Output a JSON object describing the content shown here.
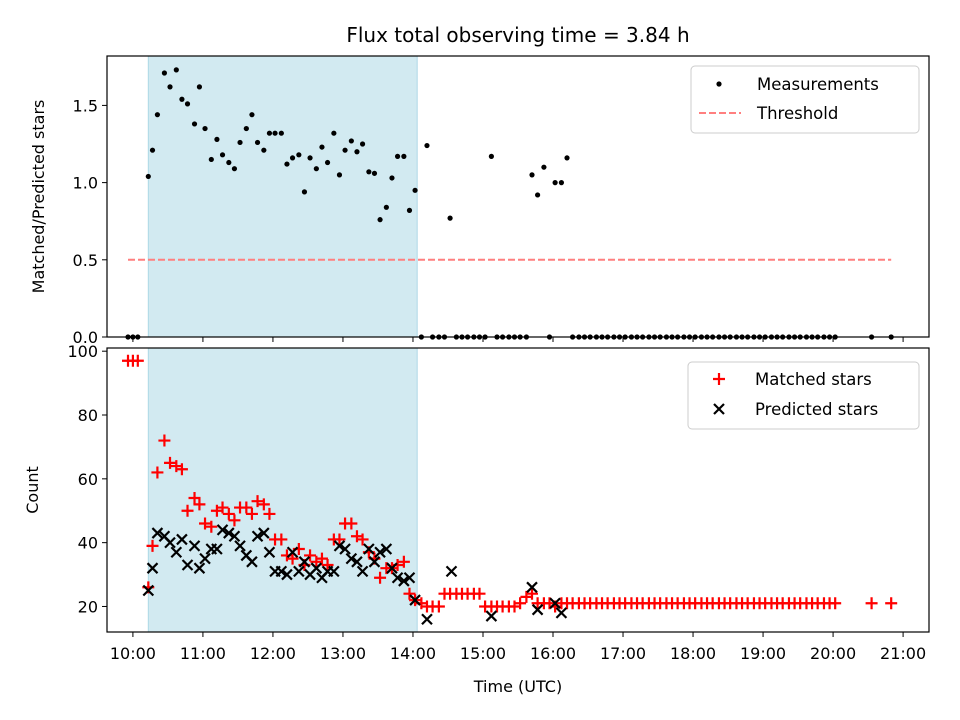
{
  "figure_title": "Flux total observing time = 3.84 h",
  "chart_data": [
    {
      "type": "scatter",
      "title": "Flux total observing time = 3.84 h",
      "xlabel": "",
      "ylabel": "Matched/Predicted stars",
      "xlim": [
        9.63,
        21.37
      ],
      "ylim": [
        0,
        1.82
      ],
      "yticks": [
        0.0,
        0.5,
        1.0,
        1.5
      ],
      "ytick_labels": [
        "0.0",
        "0.5",
        "1.0",
        "1.5"
      ],
      "xticks": [
        10,
        11,
        12,
        13,
        14,
        15,
        16,
        17,
        18,
        19,
        20,
        21
      ],
      "show_xtick_labels": false,
      "grid": false,
      "legend_position": "top-right",
      "shaded_interval": {
        "x": [
          10.22,
          14.06
        ],
        "color": "#add8e6"
      },
      "legend": [
        "Measurements",
        "Threshold"
      ],
      "threshold": {
        "label": "Threshold",
        "value": 0.5,
        "x": [
          9.93,
          20.83
        ],
        "color": "#ff7f7f"
      },
      "series": [
        {
          "name": "Measurements",
          "marker": "dot",
          "color": "#000000",
          "x": [
            9.93,
            10.0,
            10.07,
            10.22,
            10.28,
            10.35,
            10.45,
            10.53,
            10.62,
            10.7,
            10.78,
            10.88,
            10.95,
            11.03,
            11.12,
            11.2,
            11.28,
            11.37,
            11.45,
            11.53,
            11.62,
            11.7,
            11.78,
            11.87,
            11.95,
            12.03,
            12.12,
            12.2,
            12.28,
            12.37,
            12.45,
            12.53,
            12.62,
            12.7,
            12.78,
            12.87,
            12.95,
            13.03,
            13.12,
            13.2,
            13.28,
            13.37,
            13.45,
            13.53,
            13.62,
            13.7,
            13.78,
            13.87,
            13.95,
            14.03,
            14.12,
            14.2,
            14.28,
            14.37,
            14.45,
            14.53,
            14.62,
            14.7,
            14.78,
            14.87,
            14.95,
            15.03,
            15.12,
            15.2,
            15.28,
            15.37,
            15.45,
            15.53,
            15.62,
            15.7,
            15.78,
            15.87,
            15.95,
            16.03,
            16.12,
            16.2,
            16.28,
            16.37,
            16.45,
            16.53,
            16.62,
            16.7,
            16.78,
            16.87,
            16.95,
            17.03,
            17.12,
            17.2,
            17.28,
            17.37,
            17.45,
            17.53,
            17.62,
            17.7,
            17.78,
            17.87,
            17.95,
            18.03,
            18.12,
            18.2,
            18.28,
            18.37,
            18.45,
            18.53,
            18.62,
            18.7,
            18.78,
            18.87,
            18.95,
            19.03,
            19.12,
            19.2,
            19.28,
            19.37,
            19.45,
            19.53,
            19.62,
            19.7,
            19.78,
            19.87,
            19.95,
            20.03,
            20.55,
            20.83
          ],
          "y": [
            0,
            0,
            0,
            1.04,
            1.21,
            1.44,
            1.71,
            1.62,
            1.73,
            1.54,
            1.51,
            1.38,
            1.62,
            1.35,
            1.15,
            1.28,
            1.18,
            1.13,
            1.09,
            1.26,
            1.35,
            1.44,
            1.26,
            1.21,
            1.32,
            1.32,
            1.32,
            1.12,
            1.16,
            1.18,
            0.94,
            1.16,
            1.09,
            1.23,
            1.13,
            1.32,
            1.05,
            1.21,
            1.27,
            1.2,
            1.25,
            1.07,
            1.06,
            0.76,
            0.84,
            1.03,
            1.17,
            1.17,
            0.82,
            0.95,
            0,
            1.24,
            0,
            0,
            0,
            0.77,
            0,
            0,
            0,
            0,
            0,
            0,
            1.17,
            0,
            0,
            0,
            0,
            0,
            0,
            1.05,
            0.92,
            1.1,
            0,
            1.0,
            1.0,
            1.16,
            0,
            0,
            0,
            0,
            0,
            0,
            0,
            0,
            0,
            0,
            0,
            0,
            0,
            0,
            0,
            0,
            0,
            0,
            0,
            0,
            0,
            0,
            0,
            0,
            0,
            0,
            0,
            0,
            0,
            0,
            0,
            0,
            0,
            0,
            0,
            0,
            0,
            0,
            0,
            0,
            0,
            0,
            0,
            0,
            0,
            0,
            0,
            0
          ]
        }
      ]
    },
    {
      "type": "scatter",
      "title": "",
      "xlabel": "Time (UTC)",
      "ylabel": "Count",
      "xlim": [
        9.63,
        21.37
      ],
      "ylim": [
        12,
        101
      ],
      "yticks": [
        20,
        40,
        60,
        80,
        100
      ],
      "ytick_labels": [
        "20",
        "40",
        "60",
        "80",
        "100"
      ],
      "xticks": [
        10,
        11,
        12,
        13,
        14,
        15,
        16,
        17,
        18,
        19,
        20,
        21
      ],
      "xtick_labels": [
        "10:00",
        "11:00",
        "12:00",
        "13:00",
        "14:00",
        "15:00",
        "16:00",
        "17:00",
        "18:00",
        "19:00",
        "20:00",
        "21:00"
      ],
      "grid": false,
      "legend_position": "top-right",
      "shaded_interval": {
        "x": [
          10.22,
          14.06
        ],
        "color": "#add8e6"
      },
      "legend": [
        "Matched stars",
        "Predicted stars"
      ],
      "series": [
        {
          "name": "Matched stars",
          "marker": "plus",
          "color": "#ff0000",
          "x": [
            9.93,
            10.0,
            10.07,
            10.22,
            10.28,
            10.35,
            10.45,
            10.53,
            10.62,
            10.7,
            10.78,
            10.88,
            10.95,
            11.03,
            11.12,
            11.2,
            11.28,
            11.37,
            11.45,
            11.53,
            11.62,
            11.7,
            11.78,
            11.87,
            11.95,
            12.03,
            12.12,
            12.2,
            12.28,
            12.37,
            12.45,
            12.53,
            12.62,
            12.7,
            12.78,
            12.87,
            12.95,
            13.03,
            13.12,
            13.2,
            13.28,
            13.37,
            13.45,
            13.53,
            13.62,
            13.7,
            13.78,
            13.87,
            13.95,
            14.03,
            14.12,
            14.2,
            14.28,
            14.37,
            14.45,
            14.53,
            14.62,
            14.7,
            14.78,
            14.87,
            14.95,
            15.03,
            15.12,
            15.2,
            15.28,
            15.37,
            15.45,
            15.53,
            15.62,
            15.7,
            15.78,
            15.87,
            15.95,
            16.03,
            16.12,
            16.2,
            16.28,
            16.37,
            16.45,
            16.53,
            16.62,
            16.7,
            16.78,
            16.87,
            16.95,
            17.03,
            17.12,
            17.2,
            17.28,
            17.37,
            17.45,
            17.53,
            17.62,
            17.7,
            17.78,
            17.87,
            17.95,
            18.03,
            18.12,
            18.2,
            18.28,
            18.37,
            18.45,
            18.53,
            18.62,
            18.7,
            18.78,
            18.87,
            18.95,
            19.03,
            19.12,
            19.2,
            19.28,
            19.37,
            19.45,
            19.53,
            19.62,
            19.7,
            19.78,
            19.87,
            19.95,
            20.03,
            20.55,
            20.83
          ],
          "y": [
            97,
            97,
            97,
            26,
            39,
            62,
            72,
            65,
            64,
            63,
            50,
            54,
            52,
            46,
            45,
            50,
            51,
            49,
            47,
            51,
            51,
            49,
            53,
            52,
            49,
            41,
            41,
            36,
            35,
            38,
            33,
            36,
            34,
            35,
            33,
            41,
            41,
            46,
            46,
            42,
            41,
            37,
            35,
            29,
            32,
            32,
            33,
            34,
            24,
            22,
            21,
            20,
            20,
            20,
            24,
            24,
            24,
            24,
            24,
            24,
            24,
            20,
            20,
            20,
            20,
            20,
            20,
            21,
            23,
            24,
            21,
            21,
            21,
            20,
            21,
            21,
            21,
            21,
            21,
            21,
            21,
            21,
            21,
            21,
            21,
            21,
            21,
            21,
            21,
            21,
            21,
            21,
            21,
            21,
            21,
            21,
            21,
            21,
            21,
            21,
            21,
            21,
            21,
            21,
            21,
            21,
            21,
            21,
            21,
            21,
            21,
            21,
            21,
            21,
            21,
            21,
            21,
            21,
            21,
            21,
            21,
            21,
            21,
            21
          ]
        },
        {
          "name": "Predicted stars",
          "marker": "x",
          "color": "#000000",
          "x": [
            10.22,
            10.28,
            10.35,
            10.45,
            10.53,
            10.62,
            10.7,
            10.78,
            10.88,
            10.95,
            11.03,
            11.12,
            11.2,
            11.28,
            11.37,
            11.45,
            11.53,
            11.62,
            11.7,
            11.78,
            11.87,
            11.95,
            12.03,
            12.12,
            12.2,
            12.28,
            12.37,
            12.45,
            12.53,
            12.62,
            12.7,
            12.78,
            12.87,
            12.95,
            13.03,
            13.12,
            13.2,
            13.28,
            13.37,
            13.45,
            13.53,
            13.62,
            13.7,
            13.78,
            13.87,
            13.95,
            14.03,
            14.2,
            14.55,
            15.12,
            15.7,
            15.78,
            16.03,
            16.12
          ],
          "y": [
            25,
            32,
            43,
            42,
            40,
            37,
            41,
            33,
            39,
            32,
            35,
            38,
            38,
            44,
            43,
            42,
            39,
            36,
            34,
            42,
            43,
            37,
            31,
            31,
            30,
            37,
            31,
            34,
            30,
            32,
            29,
            31,
            31,
            39,
            38,
            35,
            34,
            31,
            38,
            34,
            37,
            38,
            32,
            29,
            28,
            29,
            22,
            16,
            31,
            17,
            26,
            19,
            21,
            18
          ]
        }
      ]
    }
  ]
}
